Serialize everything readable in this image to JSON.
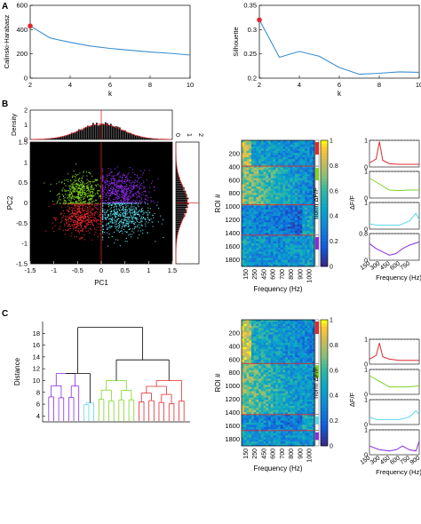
{
  "panel_letters": [
    "A",
    "B",
    "C"
  ],
  "chart_data": [
    {
      "id": "calinski",
      "type": "line",
      "panel": "A",
      "xlabel": "k",
      "ylabel": "Calinski-Harabasz",
      "xlim": [
        2,
        10
      ],
      "ylim": [
        0,
        600
      ],
      "xticks": [
        2,
        4,
        6,
        8,
        10
      ],
      "yticks": [
        0,
        200,
        400,
        600
      ],
      "x": [
        2,
        3,
        4,
        5,
        6,
        7,
        8,
        9,
        10
      ],
      "y": [
        430,
        330,
        295,
        265,
        245,
        230,
        215,
        205,
        190
      ],
      "highlight": {
        "x": 2,
        "y": 430
      },
      "line_color": "#3a8fd0",
      "marker_color": "#e0282e"
    },
    {
      "id": "silhouette",
      "type": "line",
      "panel": "A",
      "xlabel": "k",
      "ylabel": "Silhouette",
      "xlim": [
        2,
        10
      ],
      "ylim": [
        0.2,
        0.35
      ],
      "xticks": [
        2,
        4,
        6,
        8,
        10
      ],
      "yticks": [
        0.2,
        0.25,
        0.3,
        0.35
      ],
      "x": [
        2,
        3,
        4,
        5,
        6,
        7,
        8,
        9,
        10
      ],
      "y": [
        0.32,
        0.243,
        0.255,
        0.245,
        0.222,
        0.208,
        0.21,
        0.213,
        0.212
      ],
      "highlight": {
        "x": 2,
        "y": 0.32
      },
      "line_color": "#3a8fd0",
      "marker_color": "#e0282e"
    },
    {
      "id": "pc-scatter",
      "type": "scatter",
      "panel": "B",
      "xlabel": "PC1",
      "ylabel": "PC2",
      "xlim": [
        -1.5,
        1.5
      ],
      "ylim": [
        -1.5,
        1.5
      ],
      "xticks": [
        -1.5,
        -1,
        -0.5,
        0,
        0.5,
        1,
        1.5
      ],
      "yticks": [
        -1.5,
        -1,
        -0.5,
        0,
        0.5,
        1,
        1.5
      ],
      "background": "#000000",
      "clusters": [
        {
          "color": "#7ed321",
          "center": [
            -0.45,
            0.25
          ],
          "spread": [
            0.22,
            0.22
          ],
          "count": 500
        },
        {
          "color": "#8a2be2",
          "center": [
            0.4,
            0.3
          ],
          "spread": [
            0.3,
            0.25
          ],
          "count": 650
        },
        {
          "color": "#e0282e",
          "center": [
            -0.45,
            -0.35
          ],
          "spread": [
            0.22,
            0.22
          ],
          "count": 500
        },
        {
          "color": "#5ad8e8",
          "center": [
            0.45,
            -0.3
          ],
          "spread": [
            0.3,
            0.25
          ],
          "count": 550
        }
      ],
      "top_histogram": {
        "ylabel": "Density",
        "yticks": [
          0,
          1,
          2
        ],
        "ylim": [
          0,
          2
        ],
        "color": "#000000",
        "fit_color": "#e0282e"
      },
      "right_histogram": {
        "xticks": [
          0,
          1,
          2
        ],
        "xlim": [
          0,
          2
        ],
        "color": "#000000",
        "fit_color": "#e0282e"
      }
    },
    {
      "id": "heatmap-b",
      "type": "heatmap",
      "panel": "B",
      "xlabel": "Frequency (Hz)",
      "ylabel": "ROI #",
      "xticks": [
        150,
        250,
        450,
        600,
        700,
        800,
        900,
        1000
      ],
      "yticks": [
        200,
        400,
        600,
        800,
        1000,
        1200,
        1400,
        1600,
        1800
      ],
      "ylim": [
        1,
        1900
      ],
      "colorbar": {
        "label": "norm ΔF/F",
        "ticks": [
          0,
          0.2,
          0.4,
          0.6,
          0.8,
          1
        ]
      },
      "cluster_boundaries": [
        390,
        970,
        1430
      ],
      "cluster_colors": [
        "#e0282e",
        "#7ed321",
        "#5ad8e8",
        "#8a2be2"
      ]
    },
    {
      "id": "profiles-b",
      "type": "line",
      "panel": "B",
      "xlabel": "Frequency (Hz)",
      "ylabel": "ΔF/F",
      "xticks": [
        150,
        300,
        450,
        600,
        750
      ],
      "xlim": [
        150,
        900
      ],
      "rows": [
        {
          "color": "#e0282e",
          "ylim": [
            0,
            1
          ],
          "yticks": [
            0,
            0.5,
            1
          ],
          "x": [
            150,
            250,
            300,
            350,
            450,
            600,
            750,
            900
          ],
          "y": [
            0.15,
            0.3,
            0.95,
            0.25,
            0.12,
            0.1,
            0.1,
            0.1
          ]
        },
        {
          "color": "#7ed321",
          "ylim": [
            0,
            1
          ],
          "yticks": [
            0,
            0.5,
            1
          ],
          "x": [
            150,
            250,
            350,
            450,
            600,
            750,
            900
          ],
          "y": [
            0.75,
            0.6,
            0.45,
            0.3,
            0.28,
            0.3,
            0.3
          ]
        },
        {
          "color": "#5ad8e8",
          "ylim": [
            0,
            1
          ],
          "yticks": [
            0,
            0.5,
            1
          ],
          "x": [
            150,
            250,
            350,
            450,
            600,
            750,
            850,
            900
          ],
          "y": [
            0.2,
            0.15,
            0.15,
            0.15,
            0.15,
            0.3,
            0.6,
            0.35
          ]
        },
        {
          "color": "#8a2be2",
          "ylim": [
            0,
            0.8
          ],
          "yticks": [
            0,
            0.4,
            0.8
          ],
          "x": [
            150,
            250,
            350,
            450,
            550,
            650,
            750,
            900
          ],
          "y": [
            0.5,
            0.35,
            0.25,
            0.15,
            0.2,
            0.35,
            0.45,
            0.55
          ]
        }
      ]
    },
    {
      "id": "dendrogram",
      "type": "dendrogram",
      "panel": "C",
      "ylabel": "Distance",
      "ylim": [
        3,
        20
      ],
      "yticks": [
        4,
        6,
        8,
        10,
        12,
        14,
        16,
        18
      ],
      "root_height": 19,
      "groups": [
        {
          "color": "#8a2be2",
          "join_height": 11.2,
          "leaves": 7
        },
        {
          "color": "#5ad8e8",
          "join_height": 6.2,
          "leaves": 3
        },
        {
          "color": "#7ed321",
          "join_height": 10.0,
          "leaves": 8
        },
        {
          "color": "#e0282e",
          "join_height": 10.0,
          "leaves": 10
        }
      ],
      "upper_color": "#000000"
    },
    {
      "id": "heatmap-c",
      "type": "heatmap",
      "panel": "C",
      "xlabel": "Frequency (Hz)",
      "ylabel": "ROI #",
      "xticks": [
        150,
        250,
        450,
        600,
        700,
        800,
        900,
        1000
      ],
      "yticks": [
        200,
        400,
        600,
        800,
        1000,
        1200,
        1400,
        1600,
        1800
      ],
      "ylim": [
        1,
        1900
      ],
      "colorbar": {
        "label": "norm ΔF/F",
        "ticks": [
          0,
          0.2,
          0.4,
          0.6,
          0.8,
          1
        ]
      },
      "cluster_boundaries": [
        660,
        1430,
        1670
      ],
      "cluster_colors": [
        "#e0282e",
        "#7ed321",
        "#5ad8e8",
        "#8a2be2"
      ]
    },
    {
      "id": "profiles-c",
      "type": "line",
      "panel": "C",
      "xlabel": "Frequency (Hz)",
      "ylabel": "ΔF/F",
      "xticks": [
        150,
        300,
        450,
        600,
        750,
        900
      ],
      "xlim": [
        150,
        900
      ],
      "rows": [
        {
          "color": "#e0282e",
          "ylim": [
            0,
            1
          ],
          "yticks": [
            0,
            0.5,
            1
          ],
          "x": [
            150,
            250,
            300,
            350,
            450,
            600,
            750,
            900
          ],
          "y": [
            0.2,
            0.35,
            0.85,
            0.3,
            0.2,
            0.15,
            0.15,
            0.15
          ]
        },
        {
          "color": "#7ed321",
          "ylim": [
            0,
            1
          ],
          "yticks": [
            0,
            0.5,
            1
          ],
          "x": [
            150,
            250,
            350,
            450,
            600,
            750,
            900
          ],
          "y": [
            0.75,
            0.6,
            0.45,
            0.3,
            0.3,
            0.3,
            0.35
          ]
        },
        {
          "color": "#5ad8e8",
          "ylim": [
            0,
            1
          ],
          "yticks": [
            0,
            0.5,
            1
          ],
          "x": [
            150,
            250,
            350,
            450,
            600,
            750,
            850,
            900
          ],
          "y": [
            0.3,
            0.2,
            0.2,
            0.2,
            0.2,
            0.3,
            0.55,
            0.4
          ]
        },
        {
          "color": "#8a2be2",
          "ylim": [
            0,
            1
          ],
          "yticks": [
            0,
            0.5,
            1
          ],
          "x": [
            150,
            300,
            450,
            550,
            650,
            750,
            850,
            900
          ],
          "y": [
            0.35,
            0.2,
            0.15,
            0.2,
            0.35,
            0.2,
            0.15,
            0.55
          ]
        }
      ]
    }
  ]
}
